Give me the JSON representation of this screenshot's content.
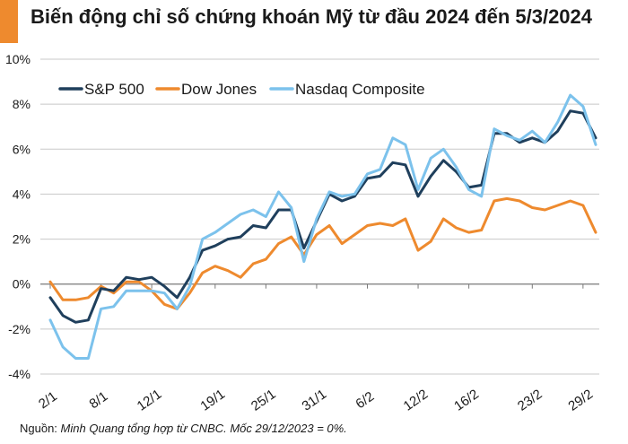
{
  "header": {
    "title": "Biến động chỉ số chứng khoán Mỹ từ đầu 2024 đến 5/3/2024"
  },
  "footer": {
    "source_label": "Nguồn:",
    "source_text": "Minh Quang tổng hợp từ CNBC. Mốc 29/12/2023 = 0%."
  },
  "colors": {
    "accent": "#ee8a2e",
    "sp500": "#1f3f5c",
    "dow": "#ee8a2e",
    "nasdaq": "#7cc2ec"
  },
  "chart_data": {
    "type": "line",
    "x_tick_labels": [
      "2/1",
      "8/1",
      "12/1",
      "19/1",
      "25/1",
      "31/1",
      "6/2",
      "12/2",
      "16/2",
      "23/2",
      "29/2"
    ],
    "x_tick_index": [
      0,
      4,
      8,
      13,
      17,
      21,
      25,
      29,
      33,
      38,
      42
    ],
    "y_tick_labels": [
      "10%",
      "8%",
      "6%",
      "4%",
      "2%",
      "0%",
      "-2%",
      "-4%"
    ],
    "ylim": [
      -4,
      10
    ],
    "unit": "%",
    "legend_position": "top-left",
    "series": [
      {
        "name": "S&P 500",
        "color": "#1f3f5c",
        "values": [
          -0.6,
          -1.4,
          -1.7,
          -1.6,
          -0.2,
          -0.3,
          0.3,
          0.2,
          0.3,
          -0.1,
          -0.6,
          0.3,
          1.5,
          1.7,
          2.0,
          2.1,
          2.6,
          2.5,
          3.3,
          3.3,
          1.6,
          2.8,
          4.0,
          3.7,
          3.9,
          4.7,
          4.8,
          5.4,
          5.3,
          3.9,
          4.8,
          5.5,
          5.0,
          4.3,
          4.4,
          6.7,
          6.7,
          6.3,
          6.5,
          6.3,
          6.8,
          7.7,
          7.6,
          6.5
        ]
      },
      {
        "name": "Dow Jones",
        "color": "#ee8a2e",
        "values": [
          0.1,
          -0.7,
          -0.7,
          -0.6,
          -0.1,
          -0.4,
          0.1,
          0.1,
          -0.3,
          -0.9,
          -1.1,
          -0.4,
          0.5,
          0.8,
          0.6,
          0.3,
          0.9,
          1.1,
          1.8,
          2.1,
          1.3,
          2.2,
          2.6,
          1.8,
          2.2,
          2.6,
          2.7,
          2.6,
          2.9,
          1.5,
          1.9,
          2.9,
          2.5,
          2.3,
          2.4,
          3.7,
          3.8,
          3.7,
          3.4,
          3.3,
          3.5,
          3.7,
          3.5,
          2.3
        ]
      },
      {
        "name": "Nasdaq Composite",
        "color": "#7cc2ec",
        "values": [
          -1.6,
          -2.8,
          -3.3,
          -3.3,
          -1.1,
          -1.0,
          -0.3,
          -0.3,
          -0.3,
          -0.4,
          -1.1,
          -0.1,
          2.0,
          2.3,
          2.7,
          3.1,
          3.3,
          3.0,
          4.1,
          3.4,
          1.0,
          2.9,
          4.1,
          3.9,
          4.0,
          4.9,
          5.1,
          6.5,
          6.2,
          4.2,
          5.6,
          6.0,
          5.2,
          4.2,
          3.9,
          6.9,
          6.6,
          6.4,
          6.8,
          6.3,
          7.2,
          8.4,
          7.9,
          6.2
        ]
      }
    ]
  }
}
